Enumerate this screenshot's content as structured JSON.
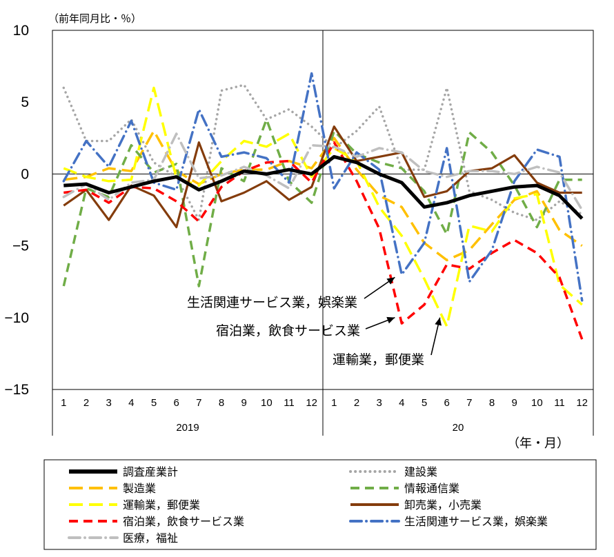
{
  "chart_data": {
    "type": "line",
    "y_unit_label": "（前年同月比・％）",
    "x_unit_label": "（年・月）",
    "ylim": [
      -15,
      10
    ],
    "yticks": [
      10,
      5,
      0,
      -5,
      -10,
      -15
    ],
    "categories": [
      "1",
      "2",
      "3",
      "4",
      "5",
      "6",
      "7",
      "8",
      "9",
      "10",
      "11",
      "12",
      "1",
      "2",
      "3",
      "4",
      "5",
      "6",
      "7",
      "8",
      "9",
      "10",
      "11",
      "12"
    ],
    "years": [
      {
        "label": "2019",
        "start": 0,
        "end": 11
      },
      {
        "label": "20",
        "start": 12,
        "end": 23
      }
    ],
    "series": [
      {
        "name": "調査産業計",
        "color": "#000000",
        "style": "solid",
        "values": [
          -0.8,
          -0.7,
          -1.3,
          -0.9,
          -0.5,
          -0.2,
          -1.1,
          -0.5,
          0.2,
          0.0,
          0.3,
          0.0,
          1.2,
          0.8,
          0.0,
          -0.6,
          -2.3,
          -2.0,
          -1.5,
          -1.2,
          -0.9,
          -0.8,
          -1.5,
          -3.1
        ]
      },
      {
        "name": "建設業",
        "color": "#a6a6a6",
        "style": "dot",
        "values": [
          6.0,
          2.3,
          2.3,
          3.8,
          0.8,
          -0.2,
          -3.2,
          5.8,
          6.2,
          3.8,
          4.5,
          3.3,
          1.8,
          3.0,
          4.7,
          0.3,
          0.3,
          6.0,
          -1.2,
          -1.8,
          -2.7,
          -3.2,
          -1.9,
          -2.8
        ]
      },
      {
        "name": "製造業",
        "color": "#ffc000",
        "style": "longdash",
        "values": [
          -0.4,
          -0.2,
          0.4,
          0.2,
          3.0,
          0.2,
          -0.7,
          0.0,
          0.3,
          0.3,
          0.9,
          0.4,
          2.5,
          0.3,
          -1.5,
          -2.3,
          -4.8,
          -6.0,
          -5.3,
          -3.5,
          -1.8,
          -1.2,
          -3.9,
          -5.0
        ]
      },
      {
        "name": "情報通信業",
        "color": "#70ad47",
        "style": "dash",
        "values": [
          -7.8,
          -1.0,
          -1.6,
          2.0,
          0.1,
          0.7,
          -7.8,
          0.4,
          -0.5,
          3.8,
          -0.5,
          -2.0,
          3.0,
          1.4,
          0.8,
          0.4,
          -1.2,
          -4.2,
          2.9,
          1.5,
          -0.8,
          -3.7,
          -0.4,
          -0.4
        ]
      },
      {
        "name": "運輸業，郵便業",
        "color": "#ffff00",
        "style": "longdash",
        "values": [
          0.4,
          -0.2,
          -0.5,
          -0.4,
          6.0,
          -0.3,
          -0.8,
          0.9,
          2.3,
          1.9,
          2.8,
          -0.2,
          1.8,
          0.9,
          -2.3,
          -4.3,
          -7.3,
          -10.6,
          -3.6,
          -4.0,
          -1.7,
          -1.4,
          -7.7,
          -9.1
        ]
      },
      {
        "name": "卸売業，小売業",
        "color": "#843c0c",
        "style": "solid",
        "values": [
          -2.2,
          -1.1,
          -3.2,
          -0.8,
          -1.5,
          -3.7,
          2.2,
          -1.9,
          -1.3,
          -0.5,
          -1.8,
          -0.9,
          3.3,
          0.9,
          1.2,
          1.5,
          -1.6,
          -1.2,
          0.2,
          0.4,
          1.3,
          -0.6,
          -1.3,
          -1.3
        ]
      },
      {
        "name": "宿泊業，飲食サービス業",
        "color": "#ff0000",
        "style": "dash",
        "values": [
          -1.3,
          -1.1,
          -2.0,
          -0.9,
          -1.0,
          -1.9,
          -3.3,
          -0.9,
          0.2,
          0.8,
          0.9,
          -0.6,
          2.2,
          -0.5,
          -3.8,
          -10.4,
          -9.1,
          -6.3,
          -6.6,
          -5.5,
          -4.6,
          -5.5,
          -7.2,
          -11.5
        ]
      },
      {
        "name": "生活関連サービス業，娯楽業",
        "color": "#4472c4",
        "style": "dashdot",
        "values": [
          -0.5,
          2.3,
          0.5,
          3.7,
          -0.6,
          -1.1,
          4.5,
          1.2,
          1.5,
          1.1,
          -0.6,
          7.0,
          -1.0,
          1.5,
          0.3,
          -7.0,
          -4.8,
          1.8,
          -7.5,
          -5.3,
          -0.5,
          1.7,
          1.2,
          -8.8
        ]
      },
      {
        "name": "医療，福祉",
        "color": "#bfbfbf",
        "style": "dashdot",
        "values": [
          -1.6,
          -0.7,
          -1.8,
          -0.6,
          -0.4,
          2.8,
          -0.3,
          -0.1,
          0.5,
          -0.1,
          -1.0,
          2.0,
          1.9,
          1.2,
          1.8,
          1.5,
          0.2,
          -0.2,
          0.2,
          0.2,
          0.0,
          0.5,
          0.1,
          -2.5
        ]
      }
    ],
    "annotations": [
      {
        "text": "生活関連サービス業，娯楽業",
        "target_index": 15,
        "target_value": -7.0
      },
      {
        "text": "宿泊業，飲食サービス業",
        "target_index": 15,
        "target_value": -9.8
      },
      {
        "text": "運輸業，郵便業",
        "target_index": 17,
        "target_value": -9.8
      }
    ],
    "legend_position": "bottom"
  }
}
